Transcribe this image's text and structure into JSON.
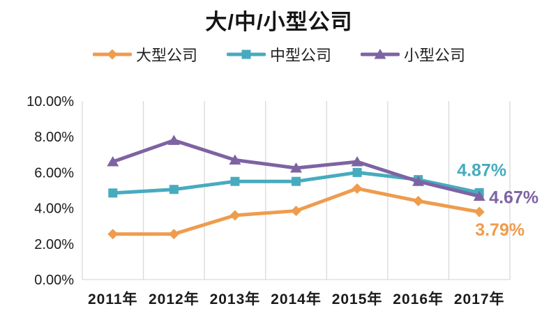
{
  "title": "大/中/小型公司",
  "chart_data": {
    "type": "line",
    "title": "大/中/小型公司",
    "categories": [
      "2011年",
      "2012年",
      "2013年",
      "2014年",
      "2015年",
      "2016年",
      "2017年"
    ],
    "series": [
      {
        "name": "大型公司",
        "color": "#EE9C4D",
        "marker": "diamond",
        "values": [
          2.55,
          2.55,
          3.6,
          3.85,
          5.1,
          4.4,
          3.79
        ],
        "end_label": "3.79%"
      },
      {
        "name": "中型公司",
        "color": "#47ABBE",
        "marker": "square",
        "values": [
          4.85,
          5.05,
          5.5,
          5.5,
          6.0,
          5.6,
          4.87
        ],
        "end_label": "4.87%"
      },
      {
        "name": "小型公司",
        "color": "#7E63A3",
        "marker": "triangle-up",
        "values": [
          6.6,
          7.8,
          6.7,
          6.25,
          6.6,
          5.5,
          4.67
        ],
        "end_label": "4.67%"
      }
    ],
    "y_axis": {
      "ticks": [
        "10.00%",
        "8.00%",
        "6.00%",
        "4.00%",
        "2.00%",
        "0.00%"
      ],
      "min": 0,
      "max": 10
    },
    "grid": "vertical",
    "legend_position": "top",
    "ylim": [
      0,
      10
    ]
  },
  "colors": {
    "text": "#1A1A1A",
    "gridline": "#D9D9D9",
    "background": "#FFFFFF"
  }
}
